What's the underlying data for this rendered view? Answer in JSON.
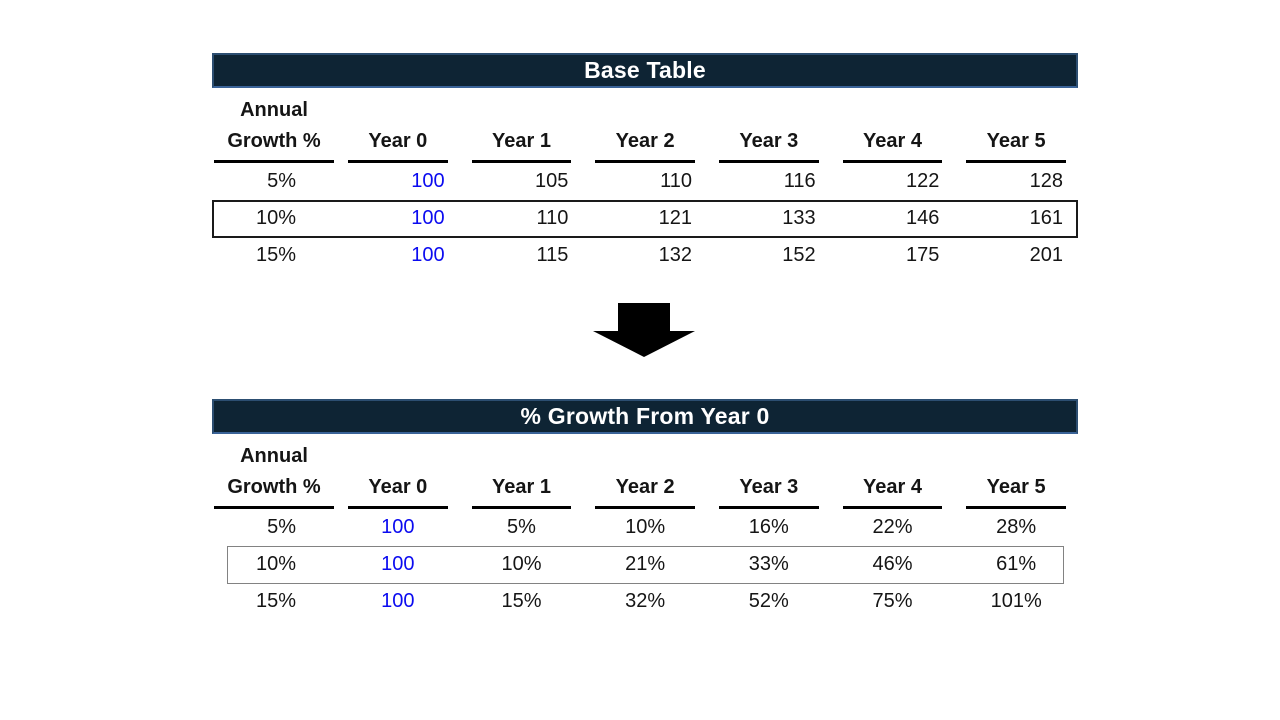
{
  "colors": {
    "title_bar_bg": "#0E2434",
    "title_bar_border": "#2C4E71",
    "year0_value_text": "#0B0BF0",
    "highlight_border_base": "#1A1A1A",
    "highlight_border_pct": "#828282"
  },
  "arrow": {
    "meaning": "transforms-into"
  },
  "table1": {
    "title": "Base Table",
    "header": {
      "label_line1": "Annual",
      "label_line2": "Growth %",
      "years": [
        "Year 0",
        "Year 1",
        "Year 2",
        "Year 3",
        "Year 4",
        "Year 5"
      ]
    },
    "rows": [
      {
        "growth": "5%",
        "values": [
          "100",
          "105",
          "110",
          "116",
          "122",
          "128"
        ],
        "highlighted": false
      },
      {
        "growth": "10%",
        "values": [
          "100",
          "110",
          "121",
          "133",
          "146",
          "161"
        ],
        "highlighted": true
      },
      {
        "growth": "15%",
        "values": [
          "100",
          "115",
          "132",
          "152",
          "175",
          "201"
        ],
        "highlighted": false
      }
    ]
  },
  "table2": {
    "title": "% Growth From Year 0",
    "header": {
      "label_line1": "Annual",
      "label_line2": "Growth %",
      "years": [
        "Year 0",
        "Year 1",
        "Year 2",
        "Year 3",
        "Year 4",
        "Year 5"
      ]
    },
    "rows": [
      {
        "growth": "5%",
        "values": [
          "100",
          "5%",
          "10%",
          "16%",
          "22%",
          "28%"
        ],
        "highlighted": false
      },
      {
        "growth": "10%",
        "values": [
          "100",
          "10%",
          "21%",
          "33%",
          "46%",
          "61%"
        ],
        "highlighted": true
      },
      {
        "growth": "15%",
        "values": [
          "100",
          "15%",
          "32%",
          "52%",
          "75%",
          "101%"
        ],
        "highlighted": false
      }
    ]
  }
}
